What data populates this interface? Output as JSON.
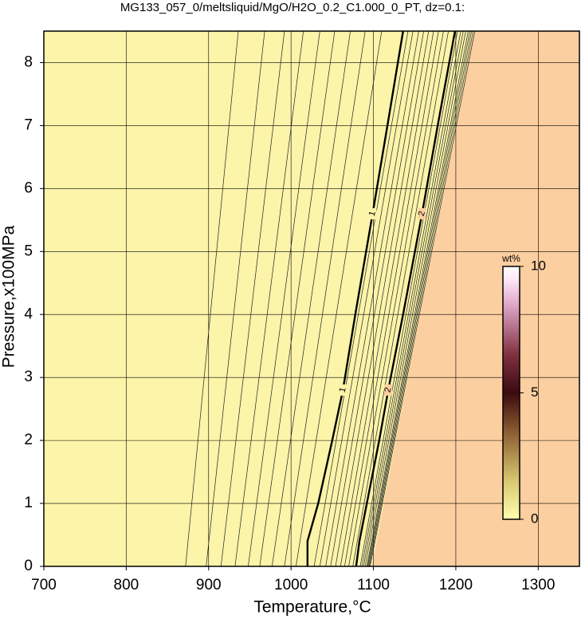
{
  "chart_data": {
    "type": "contour",
    "title": "MG133_057_0/meltsliquid/MgO/H2O_0.2_C1.000_0_PT, dz=0.1:",
    "x_label": "Temperature,°C",
    "y_label": "Pressure,x100MPa",
    "xlim": [
      700,
      1350
    ],
    "ylim": [
      0,
      8.5
    ],
    "xticks": [
      700,
      800,
      900,
      1000,
      1100,
      1200,
      1300
    ],
    "yticks": [
      0,
      1,
      2,
      3,
      4,
      5,
      6,
      7,
      8
    ],
    "grid": true,
    "background_color": "#fbf4a9",
    "high_region": {
      "color": "#fccfa0",
      "temperature": [
        1098,
        1222
      ],
      "pressure": [
        0,
        8.5
      ]
    },
    "main_contours": [
      {
        "level": 1,
        "label": "1",
        "pressure": [
          0,
          0.4,
          1,
          2,
          2.8,
          4,
          5.6,
          7,
          8.5
        ],
        "temperature": [
          1020,
          1020,
          1033,
          1050,
          1063,
          1078,
          1099,
          1117,
          1136
        ]
      },
      {
        "level": 2,
        "label": "2",
        "pressure": [
          0,
          0.4,
          1,
          2,
          2.8,
          4,
          5.6,
          7,
          8.5
        ],
        "temperature": [
          1079,
          1083,
          1092,
          1107,
          1118,
          1136,
          1159,
          1178,
          1199
        ]
      }
    ],
    "thin_contours": {
      "pressure": [
        0,
        8.5
      ],
      "lines": [
        {
          "level": 0.1,
          "temperature": [
            872,
            936
          ]
        },
        {
          "level": 0.2,
          "temperature": [
            897,
            968
          ]
        },
        {
          "level": 0.3,
          "temperature": [
            915,
            992
          ]
        },
        {
          "level": 0.4,
          "temperature": [
            932,
            1015
          ]
        },
        {
          "level": 0.5,
          "temperature": [
            948,
            1035
          ]
        },
        {
          "level": 0.6,
          "temperature": [
            962,
            1053
          ]
        },
        {
          "level": 0.7,
          "temperature": [
            977,
            1072
          ]
        },
        {
          "level": 0.8,
          "temperature": [
            992,
            1090
          ]
        },
        {
          "level": 0.9,
          "temperature": [
            1006,
            1110
          ]
        },
        {
          "level": 1.1,
          "temperature": [
            1028,
            1142
          ]
        },
        {
          "level": 1.2,
          "temperature": [
            1035,
            1148
          ]
        },
        {
          "level": 1.3,
          "temperature": [
            1042,
            1155
          ]
        },
        {
          "level": 1.4,
          "temperature": [
            1048,
            1161
          ]
        },
        {
          "level": 1.5,
          "temperature": [
            1054,
            1167
          ]
        },
        {
          "level": 1.6,
          "temperature": [
            1060,
            1173
          ]
        },
        {
          "level": 1.7,
          "temperature": [
            1065,
            1179
          ]
        },
        {
          "level": 1.8,
          "temperature": [
            1070,
            1185
          ]
        },
        {
          "level": 1.9,
          "temperature": [
            1075,
            1191
          ]
        },
        {
          "level": 2.1,
          "temperature": [
            1084,
            1202
          ]
        },
        {
          "level": 2.2,
          "temperature": [
            1086,
            1206
          ]
        },
        {
          "level": 2.3,
          "temperature": [
            1088,
            1209
          ]
        },
        {
          "level": 2.4,
          "temperature": [
            1090,
            1212
          ]
        },
        {
          "level": 2.5,
          "temperature": [
            1092,
            1215
          ]
        },
        {
          "level": 2.6,
          "temperature": [
            1093,
            1217
          ]
        },
        {
          "level": 2.7,
          "temperature": [
            1094,
            1219
          ]
        },
        {
          "level": 2.8,
          "temperature": [
            1095,
            1221
          ]
        },
        {
          "level": 2.9,
          "temperature": [
            1096,
            1223
          ]
        }
      ]
    },
    "colorbar": {
      "label": "wt%",
      "lim": [
        0,
        10
      ],
      "ticks": [
        0,
        5,
        10
      ]
    }
  }
}
